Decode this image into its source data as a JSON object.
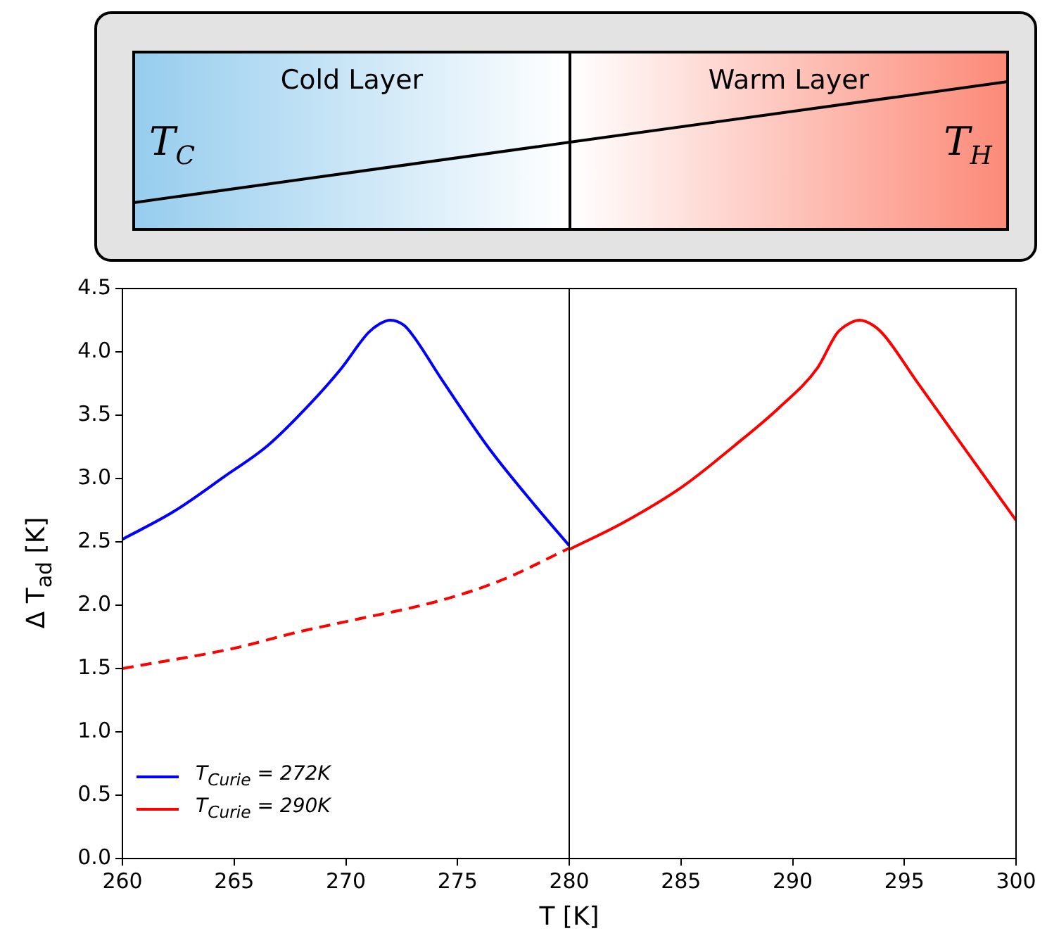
{
  "chart_data": {
    "type": "line",
    "xlabel": "T [K]",
    "ylabel": "Δ T$_{ad}$ [K]",
    "series": [
      {
        "name": "T$_{Curie}$ = 272K",
        "color": "#0000ff",
        "x": [
          260,
          262.3,
          264.6,
          266.5,
          268.4,
          269.8,
          271.0,
          271.5,
          272.0,
          272.6,
          273.0,
          274.3,
          276.4,
          278.5,
          280
        ],
        "values": [
          2.52,
          2.74,
          3.02,
          3.26,
          3.59,
          3.87,
          4.15,
          4.22,
          4.25,
          4.21,
          4.13,
          3.78,
          3.24,
          2.78,
          2.47
        ]
      },
      {
        "name": "T$_{Curie}$ = 290K",
        "color": "#ff0000",
        "x": [
          280,
          282.4,
          285.1,
          287.4,
          289.4,
          291.1,
          292.0,
          292.6,
          293.0,
          293.6,
          294.1,
          295.5,
          297.6,
          300
        ],
        "values": [
          2.44,
          2.65,
          2.94,
          3.26,
          3.56,
          3.87,
          4.15,
          4.23,
          4.25,
          4.21,
          4.13,
          3.78,
          3.26,
          2.67
        ]
      },
      {
        "color": "#ff0000",
        "line_style": "dashed",
        "x": [
          260,
          265,
          267.9,
          270,
          274.3,
          277,
          280
        ],
        "values": [
          1.5,
          1.66,
          1.79,
          1.87,
          2.04,
          2.2,
          2.45
        ]
      }
    ],
    "xlim": [
      260,
      300
    ],
    "xticks": [
      260,
      265,
      270,
      275,
      280,
      285,
      290,
      295,
      300
    ],
    "ylim": [
      0,
      4.5
    ],
    "yticks": [
      {
        "value": 0,
        "label": "0.0"
      },
      {
        "value": 0.5,
        "label": "0.5"
      },
      {
        "value": 1,
        "label": "1.0"
      },
      {
        "value": 1.5,
        "label": "1.5"
      },
      {
        "value": 2,
        "label": "2.0"
      },
      {
        "value": 2.5,
        "label": "2.5"
      },
      {
        "value": 3,
        "label": "3.0"
      },
      {
        "value": 3.5,
        "label": "3.5"
      },
      {
        "value": 4,
        "label": "4.0"
      },
      {
        "value": 4.5,
        "label": "4.5"
      }
    ],
    "ref_lines": [
      {
        "axis": "x",
        "value": 280,
        "color": "#000000"
      }
    ],
    "annotations": [
      "Cold Layer",
      "Warm Layer",
      "T$_{C}$",
      "T$_{H}$"
    ],
    "grid": false,
    "legend": "bottom left",
    "marker": "none",
    "line_style": "solid"
  }
}
